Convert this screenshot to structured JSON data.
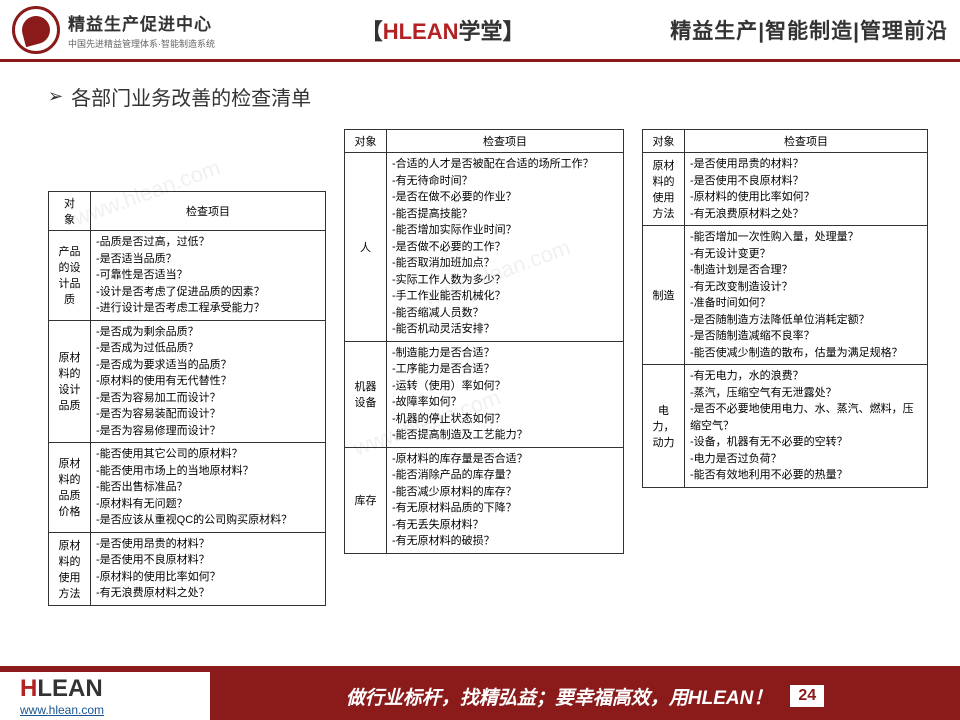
{
  "header": {
    "logo_title": "精益生产促进中心",
    "logo_subtitle": "中国先进精益管理体系·智能制造系统",
    "center_bracket_l": "【",
    "center_red": "HLEAN",
    "center_black": "学堂",
    "center_bracket_r": "】",
    "right": "精益生产|智能制造|管理前沿"
  },
  "section_title": "各部门业务改善的检查清单",
  "table1": {
    "head_obj": "对　象",
    "head_item": "检查项目",
    "rows": [
      {
        "cat": "产品的设计品质",
        "items": "-品质是否过高，过低？\n-是否适当品质？\n-可靠性是否适当？\n-设计是否考虑了促进品质的因素？\n-进行设计是否考虑工程承受能力？"
      },
      {
        "cat": "原材料的设计品质",
        "items": "-是否成为剩余品质？\n-是否成为过低品质？\n-是否成为要求适当的品质？\n-原材料的使用有无代替性？\n-是否为容易加工而设计？\n-是否为容易装配而设计？\n-是否为容易修理而设计？"
      },
      {
        "cat": "原材料的品质价格",
        "items": "-能否使用其它公司的原材料？\n-能否使用市场上的当地原材料？\n-能否出售标准品？\n-原材料有无问题？\n-是否应该从重视QC的公司购买原材料？"
      },
      {
        "cat": "原材料的使用方法",
        "items": "-是否使用昂贵的材料？\n-是否使用不良原材料？\n-原材料的使用比率如何？\n-有无浪费原材料之处？"
      }
    ]
  },
  "table2": {
    "head_obj": "对象",
    "head_item": "检查项目",
    "rows": [
      {
        "cat": "人",
        "items": "-合适的人才是否被配在合适的场所工作？\n-有无待命时间？\n-是否在做不必要的作业？\n-能否提高技能？\n-能否增加实际作业时间？\n-是否做不必要的工作？\n-能否取消加班加点？\n-实际工作人数为多少？\n-手工作业能否机械化？\n-能否缩减人员数？\n-能否机动灵活安排？"
      },
      {
        "cat": "机器设备",
        "items": "-制造能力是否合适？\n-工序能力是否合适？\n-运转（使用）率如何？\n-故障率如何？\n-机器的停止状态如何？\n-能否提高制造及工艺能力？"
      },
      {
        "cat": "库存",
        "items": "-原材料的库存量是否合适？\n-能否消除产品的库存量？\n-能否减少原材料的库存？\n-有无原材料品质的下降？\n-有无丢失原材料？\n-有无原材料的破损？"
      }
    ]
  },
  "table3": {
    "head_obj": "对象",
    "head_item": "检查项目",
    "rows": [
      {
        "cat": "原材料的使用方法",
        "items": "-是否使用昂贵的材料？\n-是否使用不良原材料？\n-原材料的使用比率如何？\n-有无浪费原材料之处？"
      },
      {
        "cat": "制造",
        "items": "-能否增加一次性购入量，处理量？\n-有无设计变更？\n-制造计划是否合理？\n-有无改变制造设计？\n-准备时间如何？\n-是否随制造方法降低单位消耗定额？\n-是否随制造减缩不良率？\n-能否使减少制造的散布，估量为满足规格？"
      },
      {
        "cat": "电力，动力",
        "items": "-有无电力，水的浪费？\n-蒸汽，压缩空气有无泄露处？\n-是否不必要地使用电力、水、蒸汽、燃料，压缩空气？\n-设备，机器有无不必要的空转？\n-电力是否过负荷？\n-能否有效地利用不必要的热量？"
      }
    ]
  },
  "footer": {
    "logo_h": "H",
    "logo_lean": "LEAN",
    "url": "www.hlean.com",
    "slogan": "做行业标杆，找精弘益；要幸福高效，用HLEAN！",
    "page": "24"
  },
  "watermark": "www.hlean.com"
}
